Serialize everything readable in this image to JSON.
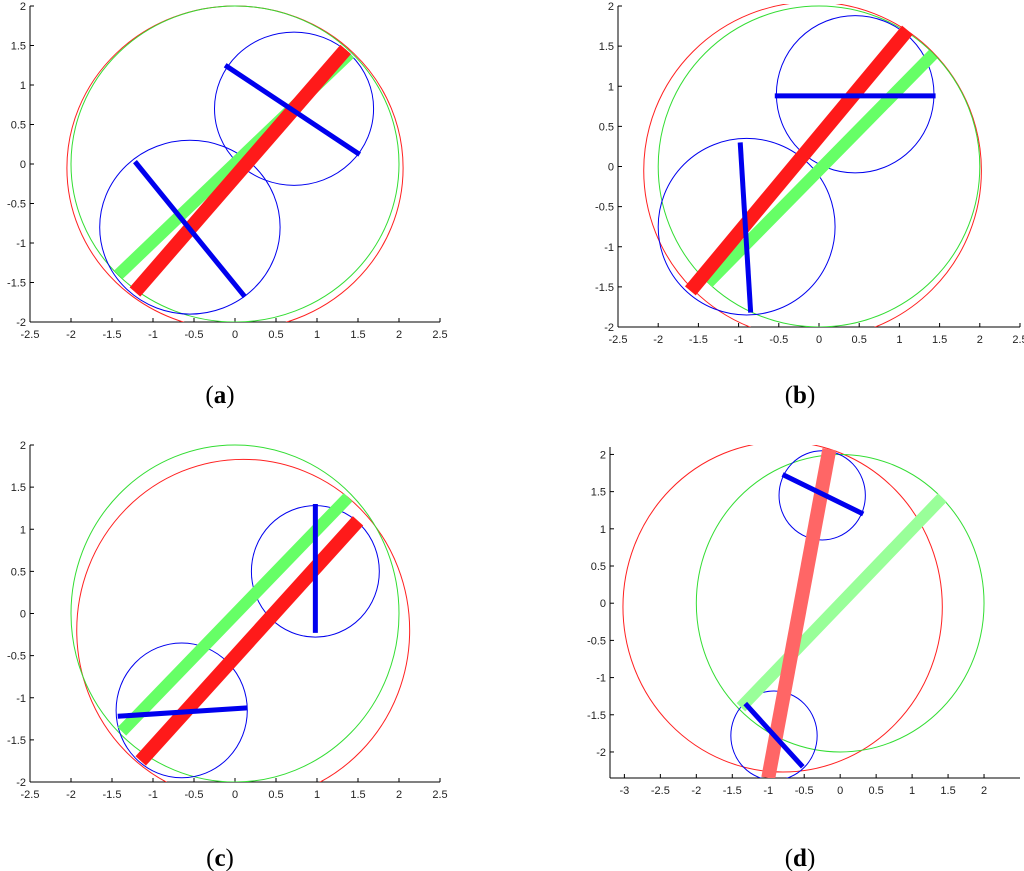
{
  "figure": {
    "panels": [
      {
        "id": "a",
        "caption_letter": "a",
        "xlim": [
          -2.5,
          2.5
        ],
        "ylim": [
          -2,
          2
        ],
        "xticks": [
          "-2.5",
          "-2",
          "-1.5",
          "-1",
          "-0.5",
          "0",
          "0.5",
          "1",
          "1.5",
          "2",
          "2.5"
        ],
        "yticks": [
          "-2",
          "-1.5",
          "-1",
          "-0.5",
          "0",
          "0.5",
          "1",
          "1.5",
          "2"
        ],
        "big_circles": [
          {
            "color": "#ff2020",
            "cx": 0.0,
            "cy": -0.05,
            "r": 2.05
          },
          {
            "color": "#33dd33",
            "cx": 0.0,
            "cy": 0.0,
            "r": 2.0
          }
        ],
        "small_circles": [
          {
            "cx": 0.72,
            "cy": 0.7,
            "r": 0.97
          },
          {
            "cx": -0.55,
            "cy": -0.8,
            "r": 1.1
          }
        ],
        "green_bar": {
          "from": [
            -1.42,
            -1.4
          ],
          "to": [
            1.4,
            1.4
          ]
        },
        "red_bar": {
          "from": [
            -1.22,
            -1.62
          ],
          "to": [
            1.35,
            1.45
          ]
        },
        "blue_bars": [
          {
            "from": [
              -0.12,
              1.25
            ],
            "to": [
              1.52,
              0.12
            ]
          },
          {
            "from": [
              -1.22,
              0.03
            ],
            "to": [
              0.12,
              -1.68
            ]
          }
        ]
      },
      {
        "id": "b",
        "caption_letter": "b",
        "xlim": [
          -2.5,
          2.5
        ],
        "ylim": [
          -2,
          2
        ],
        "xticks": [
          "-2.5",
          "-2",
          "-1.5",
          "-1",
          "-0.5",
          "0",
          "0.5",
          "1",
          "1.5",
          "2",
          "2.5"
        ],
        "yticks": [
          "-2",
          "-1.5",
          "-1",
          "-0.5",
          "0",
          "0.5",
          "1",
          "1.5",
          "2"
        ],
        "big_circles": [
          {
            "color": "#ff2020",
            "cx": -0.08,
            "cy": -0.05,
            "r": 2.1
          },
          {
            "color": "#33dd33",
            "cx": 0.0,
            "cy": 0.0,
            "r": 2.0
          }
        ],
        "small_circles": [
          {
            "cx": 0.45,
            "cy": 0.9,
            "r": 0.98
          },
          {
            "cx": -0.9,
            "cy": -0.75,
            "r": 1.1
          }
        ],
        "green_bar": {
          "from": [
            -1.38,
            -1.45
          ],
          "to": [
            1.42,
            1.4
          ]
        },
        "red_bar": {
          "from": [
            -1.6,
            -1.55
          ],
          "to": [
            1.1,
            1.7
          ]
        },
        "blue_bars": [
          {
            "from": [
              -0.55,
              0.88
            ],
            "to": [
              1.45,
              0.88
            ]
          },
          {
            "from": [
              -0.98,
              0.3
            ],
            "to": [
              -0.85,
              -1.82
            ]
          }
        ]
      },
      {
        "id": "c",
        "caption_letter": "c",
        "xlim": [
          -2.5,
          2.5
        ],
        "ylim": [
          -2,
          2
        ],
        "xticks": [
          "-2.5",
          "-2",
          "-1.5",
          "-1",
          "-0.5",
          "0",
          "0.5",
          "1",
          "1.5",
          "2",
          "2.5"
        ],
        "yticks": [
          "-2",
          "-1.5",
          "-1",
          "-0.5",
          "0",
          "0.5",
          "1",
          "1.5",
          "2"
        ],
        "big_circles": [
          {
            "color": "#ff2020",
            "cx": 0.1,
            "cy": -0.2,
            "r": 2.03
          },
          {
            "color": "#33dd33",
            "cx": 0.0,
            "cy": 0.0,
            "r": 2.0
          }
        ],
        "small_circles": [
          {
            "cx": 0.98,
            "cy": 0.5,
            "r": 0.78
          },
          {
            "cx": -0.65,
            "cy": -1.15,
            "r": 0.8
          }
        ],
        "green_bar": {
          "from": [
            -1.38,
            -1.4
          ],
          "to": [
            1.38,
            1.38
          ]
        },
        "red_bar": {
          "from": [
            -1.15,
            -1.75
          ],
          "to": [
            1.5,
            1.1
          ]
        },
        "blue_bars": [
          {
            "from": [
              0.98,
              1.3
            ],
            "to": [
              0.98,
              -0.23
            ]
          },
          {
            "from": [
              -1.43,
              -1.22
            ],
            "to": [
              0.15,
              -1.12
            ]
          }
        ]
      },
      {
        "id": "d",
        "caption_letter": "d",
        "xlim": [
          -3.2,
          2.5
        ],
        "ylim": [
          -2.35,
          2.1
        ],
        "xticks": [
          "-3",
          "-2.5",
          "-2",
          "-1.5",
          "-1",
          "-0.5",
          "0",
          "0.5",
          "1",
          "1.5",
          "2"
        ],
        "yticks": [
          "-2",
          "-1.5",
          "-1",
          "-0.5",
          "0",
          "0.5",
          "1",
          "1.5",
          "2"
        ],
        "big_circles": [
          {
            "color": "#ff2020",
            "cx": -0.8,
            "cy": -0.05,
            "r": 2.22
          },
          {
            "color": "#33dd33",
            "cx": 0.0,
            "cy": 0.0,
            "r": 2.0
          }
        ],
        "small_circles": [
          {
            "cx": -0.25,
            "cy": 1.45,
            "r": 0.6
          },
          {
            "cx": -0.92,
            "cy": -1.78,
            "r": 0.6
          }
        ],
        "green_bar": {
          "from": [
            -1.38,
            -1.4
          ],
          "to": [
            1.42,
            1.42
          ]
        },
        "red_bar": {
          "from": [
            -1.0,
            -2.35
          ],
          "to": [
            -0.15,
            2.07
          ]
        },
        "blue_bars": [
          {
            "from": [
              -0.8,
              1.73
            ],
            "to": [
              0.32,
              1.2
            ]
          },
          {
            "from": [
              -1.32,
              -1.35
            ],
            "to": [
              -0.52,
              -2.2
            ]
          }
        ],
        "faded": true
      }
    ]
  },
  "style": {
    "blue": "#0000ee",
    "bar_green": "#66ff66",
    "bar_red": "#ff1a1a",
    "bar_red_faded": "#ff6666",
    "bar_green_faded": "#99ff99",
    "axis": "#000000"
  }
}
